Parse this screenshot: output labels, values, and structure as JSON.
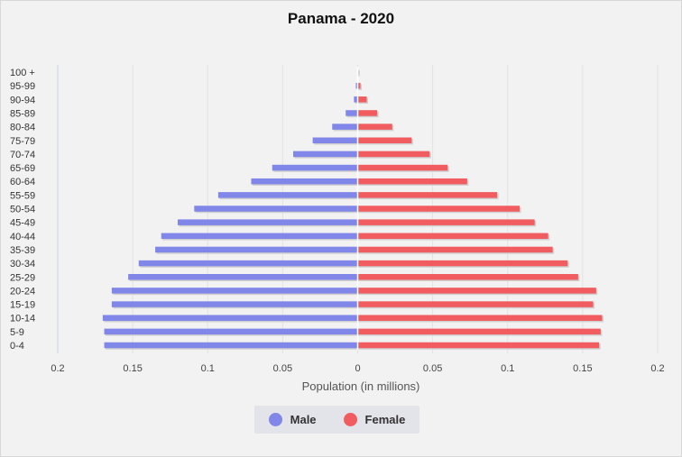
{
  "chart_data": {
    "type": "bar",
    "orientation": "horizontal",
    "title": "Panama - 2020",
    "xlabel": "Population (in millions)",
    "ylabel": "",
    "xlim": [
      -0.2,
      0.2
    ],
    "x_ticks": [
      "0.2",
      "0.15",
      "0.1",
      "0.05",
      "0",
      "0.05",
      "0.1",
      "0.15",
      "0.2"
    ],
    "grid": true,
    "legend_position": "bottom",
    "categories": [
      "100 +",
      "95-99",
      "90-94",
      "85-89",
      "80-84",
      "75-79",
      "70-74",
      "65-69",
      "60-64",
      "55-59",
      "50-54",
      "45-49",
      "40-44",
      "35-39",
      "30-34",
      "25-29",
      "20-24",
      "15-19",
      "10-14",
      "5-9",
      "0-4"
    ],
    "series": [
      {
        "name": "Male",
        "color": "#8087e8",
        "values": [
          0.0003,
          0.0012,
          0.0025,
          0.008,
          0.017,
          0.03,
          0.043,
          0.057,
          0.071,
          0.093,
          0.109,
          0.12,
          0.131,
          0.135,
          0.146,
          0.153,
          0.164,
          0.164,
          0.17,
          0.169,
          0.169
        ]
      },
      {
        "name": "Female",
        "color": "#f05c60",
        "values": [
          0.0005,
          0.0018,
          0.006,
          0.013,
          0.023,
          0.036,
          0.048,
          0.06,
          0.073,
          0.093,
          0.108,
          0.118,
          0.127,
          0.13,
          0.14,
          0.147,
          0.159,
          0.157,
          0.163,
          0.162,
          0.161
        ]
      }
    ]
  }
}
